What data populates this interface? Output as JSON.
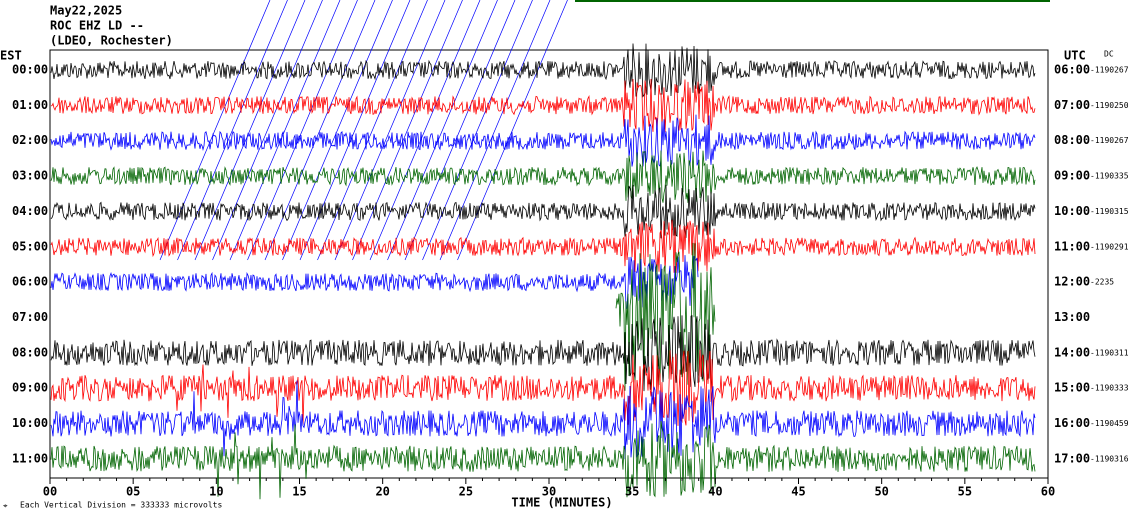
{
  "header": {
    "date": "May22,2025",
    "station": "ROC EHZ LD --",
    "network": "(LDEO, Rochester)",
    "left_zone": "EST",
    "right_zone": "UTC",
    "dc_label": "DC"
  },
  "rows": [
    {
      "est": "00:00",
      "utc": "06:00",
      "dc": "-1190267"
    },
    {
      "est": "01:00",
      "utc": "07:00",
      "dc": "-1190250"
    },
    {
      "est": "02:00",
      "utc": "08:00",
      "dc": "-1190267"
    },
    {
      "est": "03:00",
      "utc": "09:00",
      "dc": "-1190335"
    },
    {
      "est": "04:00",
      "utc": "10:00",
      "dc": "-1190315"
    },
    {
      "est": "05:00",
      "utc": "11:00",
      "dc": "-1190291"
    },
    {
      "est": "06:00",
      "utc": "12:00",
      "dc": "-2235"
    },
    {
      "est": "07:00",
      "utc": "13:00"
    },
    {
      "est": "08:00",
      "utc": "14:00",
      "dc": "-1190311"
    },
    {
      "est": "09:00",
      "utc": "15:00",
      "dc": "-1190333"
    },
    {
      "est": "10:00",
      "utc": "16:00",
      "dc": "-1190459"
    },
    {
      "est": "11:00",
      "utc": "17:00",
      "dc": "-1190316"
    }
  ],
  "x_axis": {
    "labels": [
      "00",
      "05",
      "10",
      "15",
      "20",
      "25",
      "30",
      "35",
      "40",
      "45",
      "50",
      "55",
      "60"
    ],
    "title": "TIME (MINUTES)"
  },
  "footer": {
    "note": "Each Vertical Division =  333333 microvolts"
  }
}
